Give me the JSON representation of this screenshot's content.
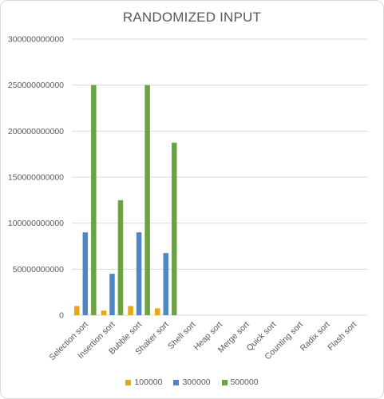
{
  "chart_data": {
    "type": "bar",
    "title": "RANDOMIZED INPUT",
    "xlabel": "",
    "ylabel": "",
    "ylim": [
      0,
      300000000000
    ],
    "yticks": [
      0,
      50000000000,
      100000000000,
      150000000000,
      200000000000,
      250000000000,
      300000000000
    ],
    "ytick_labels": [
      "0",
      "50000000000",
      "100000000000",
      "150000000000",
      "200000000000",
      "250000000000",
      "300000000000"
    ],
    "grid": true,
    "legend_position": "bottom",
    "categories": [
      "Selection sort",
      "Insertion sort",
      "Bubble sort",
      "Shaker sort",
      "Shell sort",
      "Heap sort",
      "Merge sort",
      "Quick sort",
      "Counting sort",
      "Radix sort",
      "Flash sort"
    ],
    "series": [
      {
        "name": "100000",
        "color": "#e6a817",
        "values": [
          10000000000,
          5000000000,
          10000000000,
          7500000000,
          0,
          0,
          0,
          0,
          0,
          0,
          0
        ]
      },
      {
        "name": "300000",
        "color": "#4f86c6",
        "values": [
          90000000000,
          45000000000,
          90000000000,
          67500000000,
          0,
          0,
          0,
          0,
          0,
          0,
          0
        ]
      },
      {
        "name": "500000",
        "color": "#6aa33f",
        "values": [
          250000000000,
          125000000000,
          250000000000,
          187500000000,
          0,
          0,
          0,
          0,
          0,
          0,
          0
        ]
      }
    ]
  }
}
